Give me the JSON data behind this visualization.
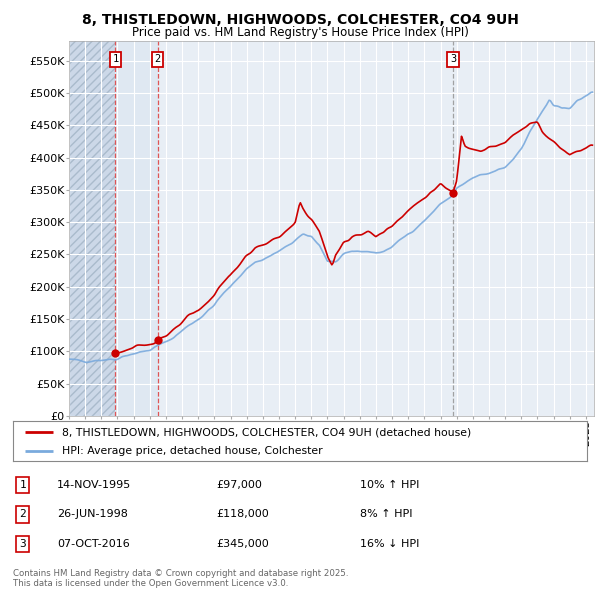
{
  "title": "8, THISTLEDOWN, HIGHWOODS, COLCHESTER, CO4 9UH",
  "subtitle": "Price paid vs. HM Land Registry's House Price Index (HPI)",
  "ylim": [
    0,
    580000
  ],
  "yticks": [
    0,
    50000,
    100000,
    150000,
    200000,
    250000,
    300000,
    350000,
    400000,
    450000,
    500000,
    550000
  ],
  "ytick_labels": [
    "£0",
    "£50K",
    "£100K",
    "£150K",
    "£200K",
    "£250K",
    "£300K",
    "£350K",
    "£400K",
    "£450K",
    "£500K",
    "£550K"
  ],
  "xlim_start": 1993.0,
  "xlim_end": 2025.5,
  "background_color": "#ffffff",
  "plot_bg_color": "#e8eef5",
  "hatch_bg_color": "#dde4ec",
  "grid_color": "#ffffff",
  "sale_line_color": "#cc0000",
  "hpi_line_color": "#7aaadd",
  "sale_dot_color": "#cc0000",
  "vline_color_red": "#dd4444",
  "vline_color_grey": "#999999",
  "legend_border_color": "#888888",
  "transactions": [
    {
      "num": 1,
      "date_x": 1995.87,
      "price": 97000,
      "label": "14-NOV-1995",
      "amount": "£97,000",
      "pct": "10%",
      "dir": "↑",
      "vline_style": "red"
    },
    {
      "num": 2,
      "date_x": 1998.48,
      "price": 118000,
      "label": "26-JUN-1998",
      "amount": "£118,000",
      "pct": "8%",
      "dir": "↑",
      "vline_style": "red"
    },
    {
      "num": 3,
      "date_x": 2016.77,
      "price": 345000,
      "label": "07-OCT-2016",
      "amount": "£345,000",
      "pct": "16%",
      "dir": "↓",
      "vline_style": "grey"
    }
  ],
  "footer": "Contains HM Land Registry data © Crown copyright and database right 2025.\nThis data is licensed under the Open Government Licence v3.0.",
  "legend_entries": [
    "8, THISTLEDOWN, HIGHWOODS, COLCHESTER, CO4 9UH (detached house)",
    "HPI: Average price, detached house, Colchester"
  ],
  "table_box_color": "#cc0000"
}
